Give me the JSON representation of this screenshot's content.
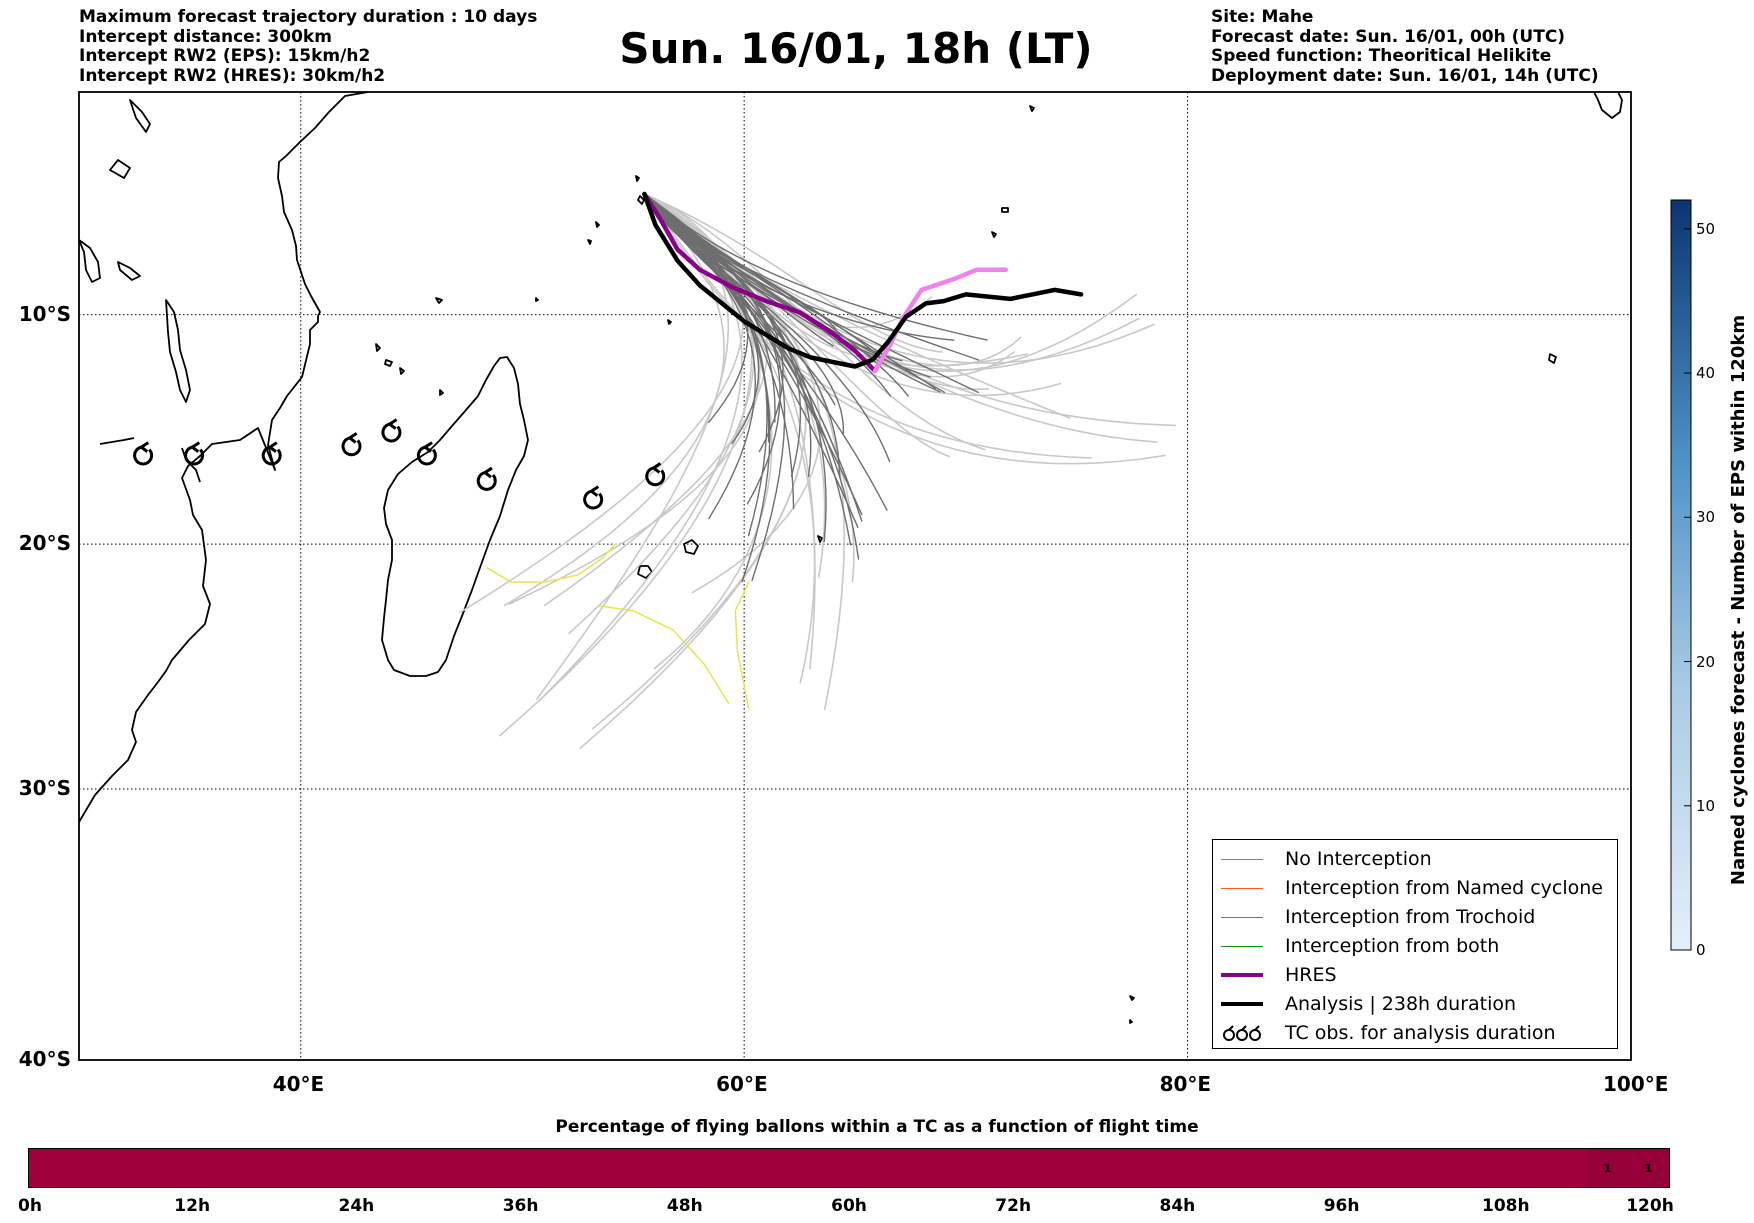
{
  "header_left": [
    "Maximum forecast trajectory duration : 10 days",
    "Intercept distance: 300km",
    "Intercept RW2 (EPS):  15km/h2",
    "Intercept RW2 (HRES): 30km/h2"
  ],
  "header_right": [
    "Site: Mahe",
    "Forecast date: Sun. 16/01, 00h (UTC)",
    "Speed function: Theoritical Helikite",
    "Deployment date: Sun. 16/01, 14h (UTC)"
  ],
  "title": "Sun. 16/01, 18h (LT)",
  "map": {
    "lon_range": [
      30,
      100
    ],
    "lat_range": [
      -40,
      0
    ],
    "lon_ticks": [
      {
        "value": 40,
        "label": "40°E"
      },
      {
        "value": 60,
        "label": "60°E"
      },
      {
        "value": 80,
        "label": "80°E"
      },
      {
        "value": 100,
        "label": "100°E"
      }
    ],
    "lat_ticks": [
      {
        "value": -10,
        "label": "10°S"
      },
      {
        "value": -20,
        "label": "20°S"
      },
      {
        "value": -30,
        "label": "30°S"
      },
      {
        "value": -40,
        "label": "40°S"
      }
    ],
    "origin_site": {
      "name": "Mahe",
      "lon": 55.5,
      "lat": -4.6
    },
    "hres_track": [
      [
        55.5,
        -4.6
      ],
      [
        56.2,
        -5.7
      ],
      [
        57.0,
        -7.1
      ],
      [
        58.0,
        -8.0
      ],
      [
        59.5,
        -8.8
      ],
      [
        61.0,
        -9.4
      ],
      [
        62.5,
        -9.9
      ],
      [
        63.8,
        -10.7
      ],
      [
        65.0,
        -11.6
      ],
      [
        65.9,
        -12.5
      ],
      [
        66.6,
        -11.3
      ],
      [
        67.2,
        -10.1
      ],
      [
        68.0,
        -8.9
      ],
      [
        69.5,
        -8.4
      ],
      [
        70.5,
        -8.0
      ],
      [
        71.8,
        -8.0
      ]
    ],
    "analysis_track": [
      [
        55.5,
        -4.6
      ],
      [
        56.0,
        -6.0
      ],
      [
        57.0,
        -7.6
      ],
      [
        58.0,
        -8.7
      ],
      [
        59.0,
        -9.5
      ],
      [
        60.0,
        -10.3
      ],
      [
        61.0,
        -10.9
      ],
      [
        62.0,
        -11.5
      ],
      [
        63.0,
        -11.9
      ],
      [
        64.0,
        -12.1
      ],
      [
        65.0,
        -12.3
      ],
      [
        65.8,
        -12.0
      ],
      [
        66.5,
        -11.2
      ],
      [
        67.3,
        -10.1
      ],
      [
        68.2,
        -9.5
      ],
      [
        69.0,
        -9.4
      ],
      [
        70.0,
        -9.1
      ],
      [
        71.0,
        -9.2
      ],
      [
        72.0,
        -9.3
      ],
      [
        73.0,
        -9.1
      ],
      [
        74.0,
        -8.9
      ],
      [
        75.2,
        -9.1
      ]
    ],
    "tc_obs": [
      [
        32.9,
        -16.2
      ],
      [
        35.2,
        -16.2
      ],
      [
        38.7,
        -16.2
      ],
      [
        42.3,
        -15.8
      ],
      [
        44.1,
        -15.2
      ],
      [
        45.7,
        -16.2
      ],
      [
        48.4,
        -17.3
      ],
      [
        53.2,
        -18.1
      ],
      [
        56.0,
        -17.1
      ]
    ]
  },
  "legend": [
    {
      "label": "No Interception",
      "color": "#808080",
      "style": "thin"
    },
    {
      "label": "Interception from Named cyclone",
      "color": "#ff5a1a",
      "style": "thin"
    },
    {
      "label": "Interception from Trochoid",
      "color": "#808000",
      "style": "thin"
    },
    {
      "label": "Interception from both",
      "color": "#1a8a1a",
      "style": "thin"
    },
    {
      "label": "HRES",
      "color": "#8b008b",
      "style": "thick"
    },
    {
      "label": "Analysis | 238h duration",
      "color": "#000000",
      "style": "thick"
    },
    {
      "label": "TC obs. for analysis duration",
      "color": "#000000",
      "style": "symbol"
    }
  ],
  "colorbar": {
    "label": "Named cyclones forecast - Number of EPS within 120km",
    "min": 0,
    "max": 52,
    "ticks": [
      0,
      10,
      20,
      30,
      40,
      50
    ],
    "colors": [
      "#deebf7",
      "#08306b"
    ]
  },
  "flight_time_bar": {
    "title": "Percentage of flying ballons within a TC as a function of flight time",
    "ticks": [
      "0h",
      "12h",
      "24h",
      "36h",
      "48h",
      "60h",
      "72h",
      "84h",
      "96h",
      "108h",
      "120h"
    ],
    "max_hours": 120,
    "base_color": "#a0003c",
    "cells": [
      {
        "start_h": 114,
        "end_h": 117,
        "label": "1"
      },
      {
        "start_h": 117,
        "end_h": 120,
        "label": "1"
      }
    ]
  }
}
